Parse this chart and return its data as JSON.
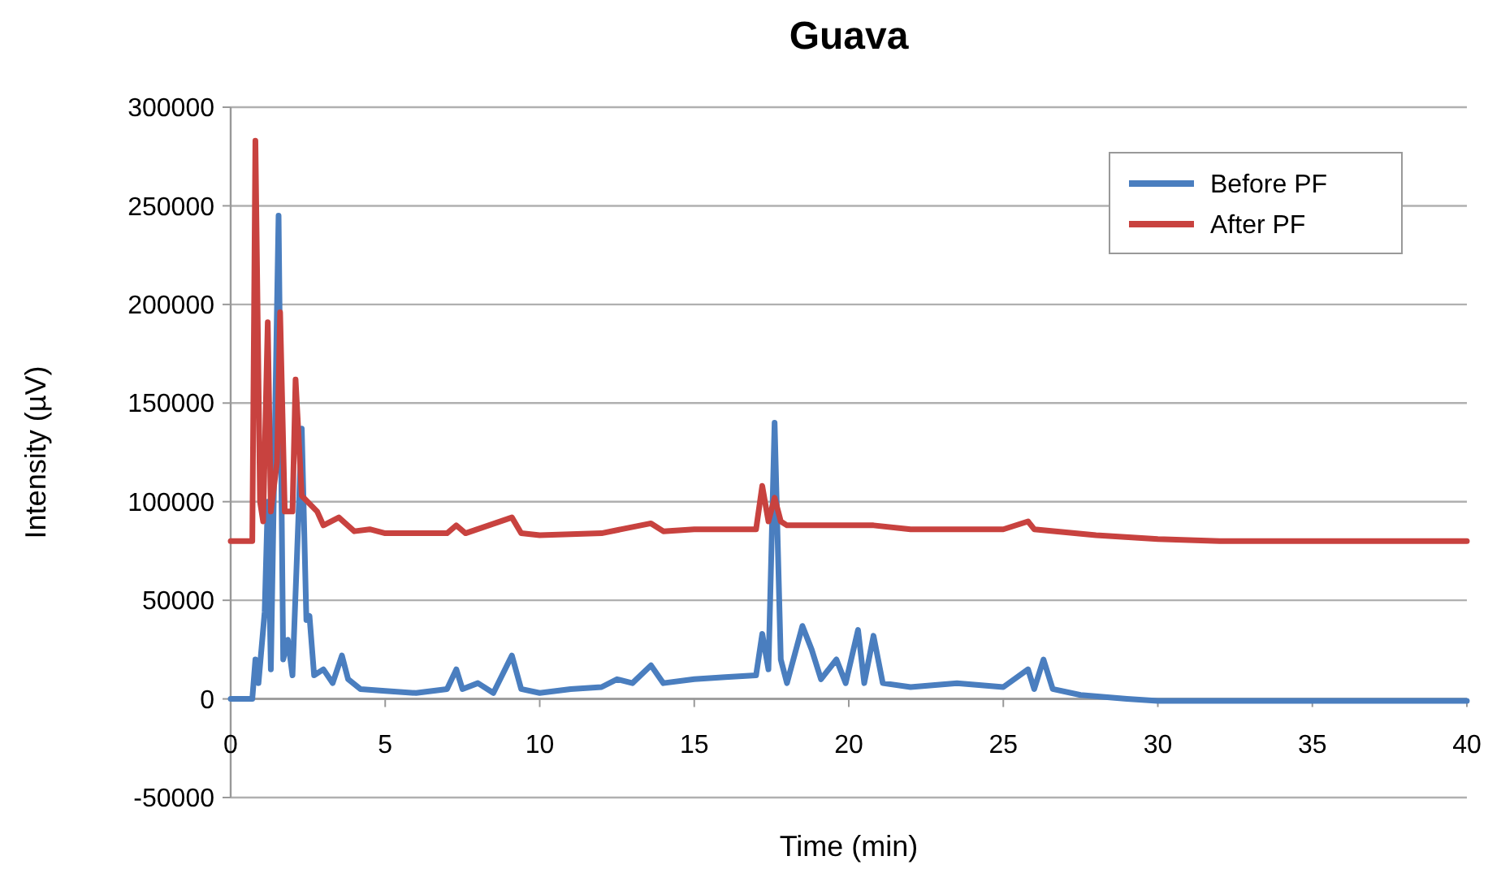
{
  "chart_data": {
    "type": "line",
    "title": "Guava",
    "xlabel": "Time (min)",
    "ylabel": "Intensity (µV)",
    "xlim": [
      0,
      40
    ],
    "xticks": [
      0,
      5,
      10,
      15,
      20,
      25,
      30,
      35,
      40
    ],
    "ylim": [
      -50000,
      300000
    ],
    "yticks": [
      -50000,
      0,
      50000,
      100000,
      150000,
      200000,
      250000,
      300000
    ],
    "grid": "y",
    "legend": "top right",
    "line_style": "solid",
    "series": [
      {
        "name": "Before PF",
        "color": "#4a7ebf",
        "x": [
          0,
          0.7,
          0.8,
          0.9,
          1.1,
          1.2,
          1.3,
          1.55,
          1.7,
          1.85,
          2.0,
          2.3,
          2.45,
          2.55,
          2.7,
          3.0,
          3.3,
          3.6,
          3.8,
          4.2,
          5,
          6,
          7.0,
          7.3,
          7.5,
          8.0,
          8.5,
          9.1,
          9.4,
          10,
          11,
          12,
          12.5,
          13,
          13.6,
          14,
          15,
          16,
          17.0,
          17.2,
          17.4,
          17.6,
          17.8,
          18.0,
          18.5,
          18.8,
          19.1,
          19.6,
          19.9,
          20.3,
          20.5,
          20.8,
          21.1,
          22,
          23.5,
          25,
          25.8,
          26.0,
          26.3,
          26.6,
          27.5,
          29,
          30,
          40
        ],
        "values": [
          0,
          0,
          20000,
          8000,
          44000,
          100000,
          15000,
          245000,
          20000,
          30000,
          12000,
          137000,
          40000,
          42000,
          12000,
          15000,
          8000,
          22000,
          10000,
          5000,
          4000,
          3000,
          5000,
          15000,
          5000,
          8000,
          3000,
          22000,
          5000,
          3000,
          5000,
          6000,
          10000,
          8000,
          17000,
          8000,
          10000,
          11000,
          12000,
          33000,
          15000,
          140000,
          20000,
          8000,
          37000,
          25000,
          10000,
          20000,
          8000,
          35000,
          8000,
          32000,
          8000,
          6000,
          8000,
          6000,
          15000,
          5000,
          20000,
          5000,
          2000,
          0,
          -1000,
          -1000
        ]
      },
      {
        "name": "After PF",
        "color": "#c8423f",
        "x": [
          0,
          0.7,
          0.8,
          0.95,
          1.05,
          1.2,
          1.3,
          1.5,
          1.6,
          1.75,
          2.0,
          2.1,
          2.3,
          2.8,
          3.0,
          3.5,
          4,
          4.5,
          5,
          7.0,
          7.3,
          7.6,
          9.1,
          9.4,
          10,
          12,
          13.6,
          14,
          15,
          17.0,
          17.2,
          17.4,
          17.6,
          17.8,
          18,
          19,
          20.8,
          22,
          25,
          25.8,
          26,
          28,
          30,
          32,
          40
        ],
        "values": [
          80000,
          80000,
          283000,
          100000,
          90000,
          191000,
          95000,
          120000,
          196000,
          95000,
          95000,
          162000,
          103000,
          95000,
          88000,
          92000,
          85000,
          86000,
          84000,
          84000,
          88000,
          84000,
          92000,
          84000,
          83000,
          84000,
          89000,
          85000,
          86000,
          86000,
          108000,
          90000,
          102000,
          90000,
          88000,
          88000,
          88000,
          86000,
          86000,
          90000,
          86000,
          83000,
          81000,
          80000,
          80000
        ]
      }
    ]
  }
}
